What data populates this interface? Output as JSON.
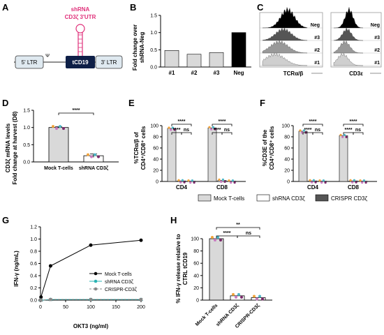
{
  "panel_letters": [
    "A",
    "B",
    "C",
    "D",
    "E",
    "F",
    "G",
    "H"
  ],
  "construct": {
    "ltr5": "5' LTR",
    "psi": "Ψ",
    "tcd19": "tCD19",
    "ltr3": "3' LTR",
    "shrna_line1": "shRNA",
    "shrna_line2": "CD3ζ 3'UTR",
    "accent_color": "#e0307a",
    "box_color": "#0e1f47"
  },
  "flow": {
    "markers": [
      "TCRα/β",
      "CD3ε"
    ],
    "samples": [
      "Neg",
      "#3",
      "#2",
      "#1"
    ],
    "colors": [
      "#000000",
      "#555555",
      "#999999",
      "#cfcfcf"
    ]
  },
  "legend_ef": [
    {
      "label": "Mock T-cells",
      "color": "#d9d9d9"
    },
    {
      "label": "shRNA CD3ζ",
      "color": "#ffffff"
    },
    {
      "label": "CRISPR CD3ζ",
      "color": "#555555"
    }
  ],
  "sig": {
    "four": "****",
    "two": "**",
    "ns": "ns"
  },
  "chart_data": [
    {
      "panel": "B",
      "type": "bar",
      "categories": [
        "#1",
        "#2",
        "#3",
        "Neg"
      ],
      "values": [
        0.48,
        0.37,
        0.42,
        1.0
      ],
      "colors": [
        "#d9d9d9",
        "#d9d9d9",
        "#d9d9d9",
        "#000000"
      ],
      "ylabel": "Fold change over shRNA-Neg",
      "ylim": [
        0,
        1.5
      ],
      "yticks": [
        "0.0",
        "0.5",
        "1.0",
        "1.5"
      ]
    },
    {
      "panel": "D",
      "type": "bar",
      "categories": [
        "Mock T-cells",
        "shRNA CD3ζ"
      ],
      "values": [
        1.0,
        0.18
      ],
      "errors": [
        0.02,
        0.05
      ],
      "ylabel": "CD3ζ mRNA levels Fold change at harvest (D8)",
      "ylim": [
        0,
        1.5
      ],
      "yticks": [
        "0.0",
        "0.5",
        "1.0",
        "1.5"
      ]
    },
    {
      "panel": "E",
      "type": "bar",
      "groups": [
        "CD4",
        "CD8"
      ],
      "series": [
        {
          "name": "Mock T-cells",
          "values": [
            95,
            96
          ]
        },
        {
          "name": "shRNA CD3ζ",
          "values": [
            1,
            2
          ]
        },
        {
          "name": "CRISPR CD3ζ",
          "values": [
            0.5,
            0.5
          ]
        }
      ],
      "ylabel": "%TCRα/β of CD4⁺/CD8⁺ cells",
      "ylim": [
        0,
        100
      ],
      "yticks": [
        "0",
        "20",
        "40",
        "60",
        "80",
        "100"
      ]
    },
    {
      "panel": "F",
      "type": "bar",
      "groups": [
        "CD4",
        "CD8"
      ],
      "series": [
        {
          "name": "Mock T-cells",
          "values": [
            90,
            82
          ]
        },
        {
          "name": "shRNA CD3ζ",
          "values": [
            1,
            1
          ]
        },
        {
          "name": "CRISPR CD3ζ",
          "values": [
            0.5,
            0.5
          ]
        }
      ],
      "ylabel": "%CD3E of the CD4⁺/CD8⁺ cells",
      "ylim": [
        0,
        100
      ],
      "yticks": [
        "0",
        "20",
        "40",
        "60",
        "80",
        "100"
      ]
    },
    {
      "panel": "G",
      "type": "line",
      "x": [
        0,
        1,
        20,
        100,
        200
      ],
      "series": [
        {
          "name": "Mock T-cells",
          "values": [
            0.0,
            0.05,
            0.56,
            0.9,
            0.98
          ],
          "color": "#000000",
          "marker": "circle"
        },
        {
          "name": "shRNA CD3ζ",
          "values": [
            0.0,
            0.0,
            0.01,
            0.01,
            0.01
          ],
          "color": "#2ab3b3",
          "marker": "triangle"
        },
        {
          "name": "CRISPR-CD3ζ",
          "values": [
            0.0,
            0.0,
            0.01,
            0.01,
            0.01
          ],
          "color": "#888888",
          "marker": "square"
        }
      ],
      "xlabel": "OKT3 (ng/ml)",
      "ylabel": "IFN-γ (ng/mL)",
      "xlim": [
        0,
        200
      ],
      "ylim": [
        0,
        1.2
      ],
      "xticks": [
        "0",
        "50",
        "100",
        "150",
        "200"
      ],
      "yticks": [
        "0.0",
        "0.2",
        "0.4",
        "0.6",
        "0.8",
        "1.0",
        "1.2"
      ],
      "legend": "right"
    },
    {
      "panel": "H",
      "type": "bar",
      "categories": [
        "Mock T-cells",
        "shRNA CD3ζ",
        "CRISPR-CD3ζ"
      ],
      "values": [
        100,
        7,
        4
      ],
      "ylabel": "% IFN-γ release relative to CTRL tCD19",
      "ylim": [
        0,
        100
      ],
      "yticks": [
        "0",
        "20",
        "40",
        "60",
        "80",
        "100"
      ]
    }
  ]
}
